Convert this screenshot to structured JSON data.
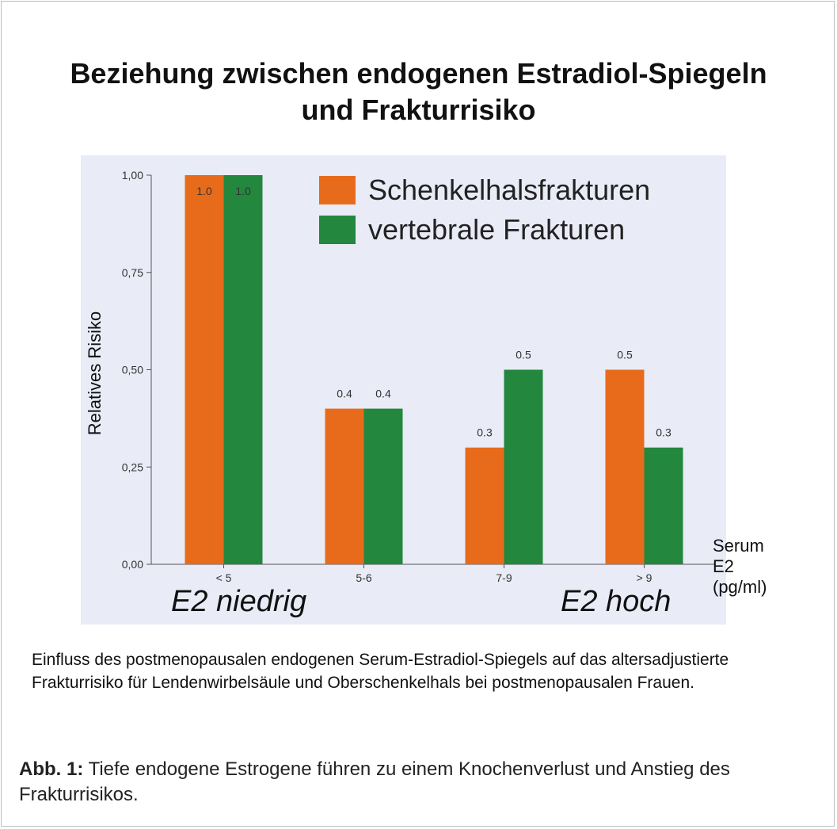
{
  "title": {
    "line1": "Beziehung zwischen endogenen Estradiol-Spiegeln",
    "line2": "und Frakturrisiko"
  },
  "chart_data": {
    "type": "bar",
    "categories": [
      "< 5",
      "5-6",
      "7-9",
      "> 9"
    ],
    "series": [
      {
        "name": "Schenkelhalsfrakturen",
        "color": "#e86b1c",
        "values": [
          1.0,
          0.4,
          0.3,
          0.5
        ],
        "labels": [
          "1.0",
          "0.4",
          "0.3",
          "0.5"
        ]
      },
      {
        "name": "vertebrale Frakturen",
        "color": "#23873e",
        "values": [
          1.0,
          0.4,
          0.5,
          0.3
        ],
        "labels": [
          "1.0",
          "0.4",
          "0.5",
          "0.3"
        ]
      }
    ],
    "ylabel": "Relatives Risiko",
    "xlabel_lines": [
      "Serum",
      "E2",
      "(pg/ml)"
    ],
    "ylim": [
      0,
      1.0
    ],
    "yticks": [
      {
        "value": 0,
        "label": "0,00"
      },
      {
        "value": 0.25,
        "label": "0,25"
      },
      {
        "value": 0.5,
        "label": "0,50"
      },
      {
        "value": 0.75,
        "label": "0,75"
      },
      {
        "value": 1.0,
        "label": "1,00"
      }
    ],
    "annotations": {
      "low": "E2 niedrig",
      "high": "E2 hoch"
    },
    "legend_position": "top-right",
    "grid": false
  },
  "description": "Einfluss des postmenopausalen endogenen Serum-Estradiol-Spiegels auf das altersadjustierte Frakturrisiko für Lendenwirbelsäule und Oberschenkelhals bei postmenopausalen Frauen.",
  "caption": {
    "label": "Abb. 1:",
    "text": " Tiefe endogene Estrogene führen zu einem Knochenverlust und Anstieg des Frakturrisikos."
  }
}
